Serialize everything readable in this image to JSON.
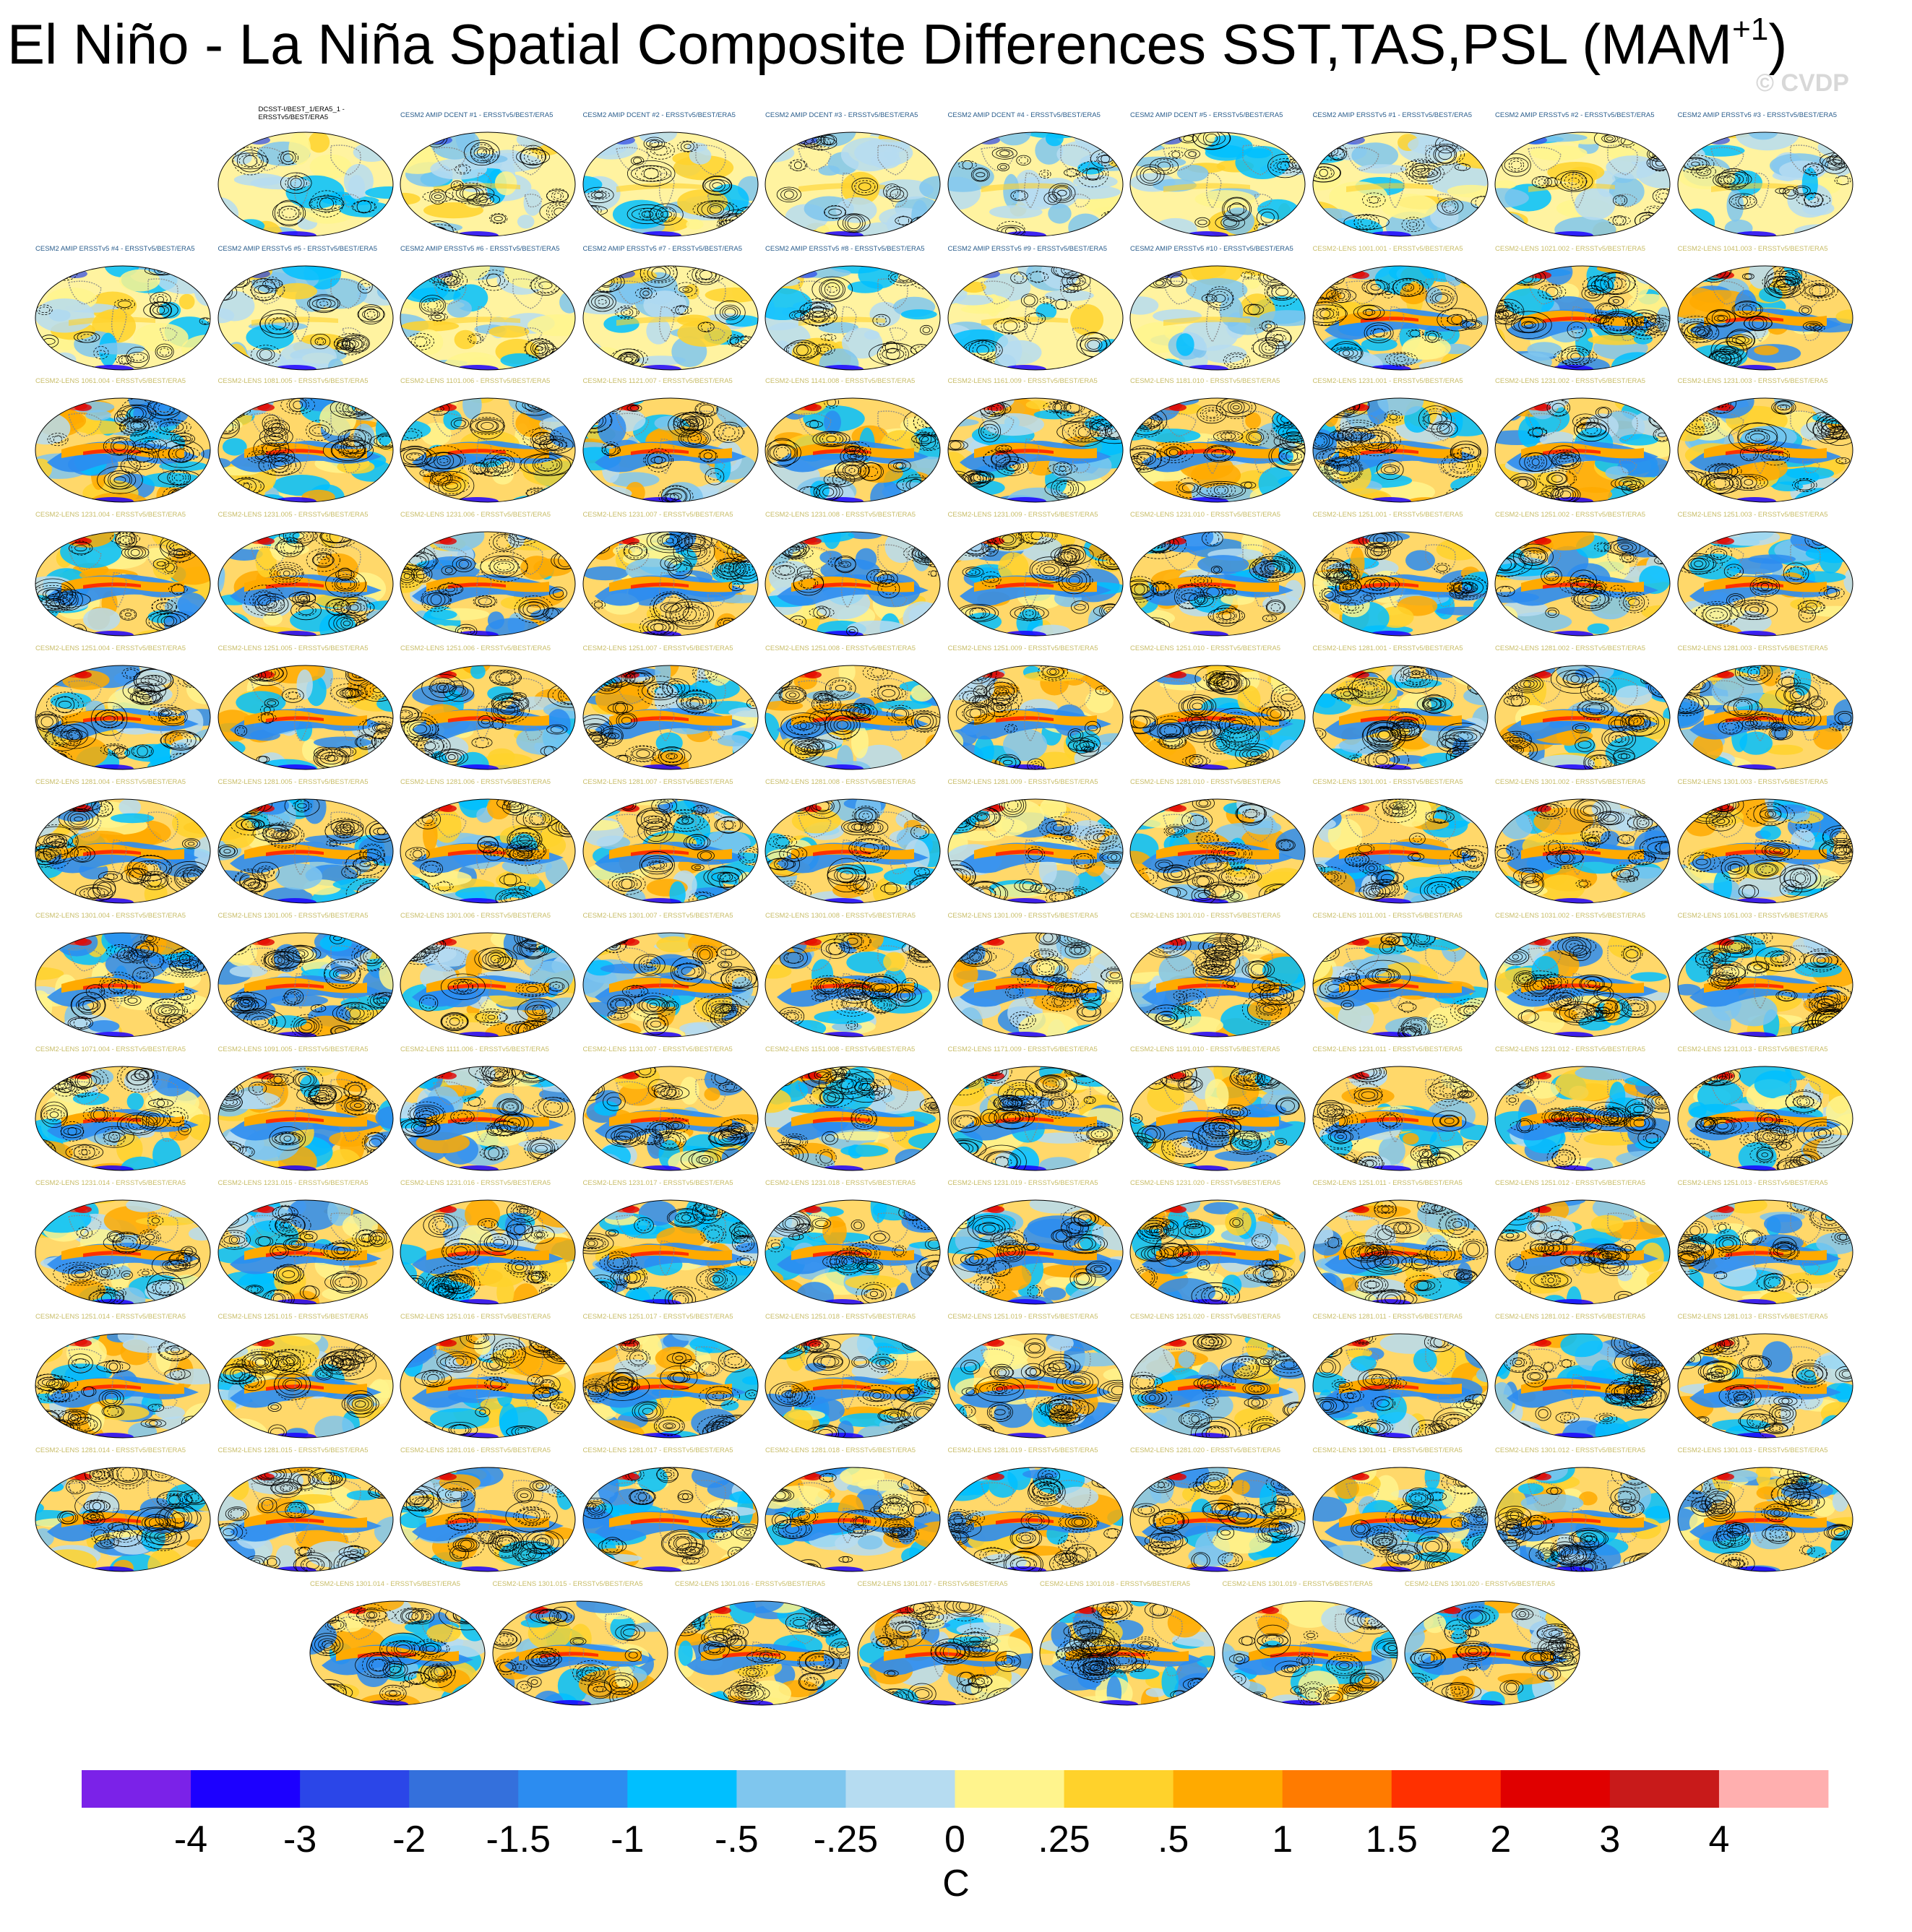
{
  "title_main": "El Niño - La Niña Spatial Composite Differences SST,TAS,PSL (MAM",
  "title_sup": "+1",
  "title_close": ")",
  "watermark": "© CVDP",
  "chart_data": {
    "type": "heatmap",
    "title": "El Niño - La Niña Spatial Composite Differences SST,TAS,PSL (MAM+1)",
    "units_label": "C",
    "colorbar": {
      "levels": [
        "-4",
        "-3",
        "-2",
        "-1.5",
        "-1",
        "-.5",
        "-.25",
        "0",
        ".25",
        ".5",
        "1",
        "1.5",
        "2",
        "3",
        "4"
      ],
      "colors": [
        "#7b22e8",
        "#1c00ff",
        "#2b46e8",
        "#3470dc",
        "#2c8cf0",
        "#00bfff",
        "#7fc6ee",
        "#b6dcf1",
        "#fff48d",
        "#ffd22b",
        "#ffaa00",
        "#ff7b00",
        "#ff3000",
        "#e00000",
        "#c81a1a",
        "#ffafaf"
      ]
    },
    "panels": [
      {
        "label": "DCSST-I/BEST_1/ERA5_1 - ERSSTv5/BEST/ERA5",
        "group": "obs"
      },
      {
        "label": "CESM2 AMIP DCENT #1 - ERSSTv5/BEST/ERA5",
        "group": "amip"
      },
      {
        "label": "CESM2 AMIP DCENT #2 - ERSSTv5/BEST/ERA5",
        "group": "amip"
      },
      {
        "label": "CESM2 AMIP DCENT #3 - ERSSTv5/BEST/ERA5",
        "group": "amip"
      },
      {
        "label": "CESM2 AMIP DCENT #4 - ERSSTv5/BEST/ERA5",
        "group": "amip"
      },
      {
        "label": "CESM2 AMIP DCENT #5 - ERSSTv5/BEST/ERA5",
        "group": "amip"
      },
      {
        "label": "CESM2 AMIP ERSSTv5 #1 - ERSSTv5/BEST/ERA5",
        "group": "amip"
      },
      {
        "label": "CESM2 AMIP ERSSTv5 #2 - ERSSTv5/BEST/ERA5",
        "group": "amip"
      },
      {
        "label": "CESM2 AMIP ERSSTv5 #3 - ERSSTv5/BEST/ERA5",
        "group": "amip"
      },
      {
        "label": "CESM2 AMIP ERSSTv5 #4 - ERSSTv5/BEST/ERA5",
        "group": "amip"
      },
      {
        "label": "CESM2 AMIP ERSSTv5 #5 - ERSSTv5/BEST/ERA5",
        "group": "amip"
      },
      {
        "label": "CESM2 AMIP ERSSTv5 #6 - ERSSTv5/BEST/ERA5",
        "group": "amip"
      },
      {
        "label": "CESM2 AMIP ERSSTv5 #7 - ERSSTv5/BEST/ERA5",
        "group": "amip"
      },
      {
        "label": "CESM2 AMIP ERSSTv5 #8 - ERSSTv5/BEST/ERA5",
        "group": "amip"
      },
      {
        "label": "CESM2 AMIP ERSSTv5 #9 - ERSSTv5/BEST/ERA5",
        "group": "amip"
      },
      {
        "label": "CESM2 AMIP ERSSTv5 #10 - ERSSTv5/BEST/ERA5",
        "group": "amip"
      },
      {
        "label": "CESM2-LENS 1001.001 - ERSSTv5/BEST/ERA5",
        "group": "lens"
      },
      {
        "label": "CESM2-LENS 1021.002 - ERSSTv5/BEST/ERA5",
        "group": "lens"
      },
      {
        "label": "CESM2-LENS 1041.003 - ERSSTv5/BEST/ERA5",
        "group": "lens"
      },
      {
        "label": "CESM2-LENS 1061.004 - ERSSTv5/BEST/ERA5",
        "group": "lens"
      },
      {
        "label": "CESM2-LENS 1081.005 - ERSSTv5/BEST/ERA5",
        "group": "lens"
      },
      {
        "label": "CESM2-LENS 1101.006 - ERSSTv5/BEST/ERA5",
        "group": "lens"
      },
      {
        "label": "CESM2-LENS 1121.007 - ERSSTv5/BEST/ERA5",
        "group": "lens"
      },
      {
        "label": "CESM2-LENS 1141.008 - ERSSTv5/BEST/ERA5",
        "group": "lens"
      },
      {
        "label": "CESM2-LENS 1161.009 - ERSSTv5/BEST/ERA5",
        "group": "lens"
      },
      {
        "label": "CESM2-LENS 1181.010 - ERSSTv5/BEST/ERA5",
        "group": "lens"
      },
      {
        "label": "CESM2-LENS 1231.001 - ERSSTv5/BEST/ERA5",
        "group": "lens"
      },
      {
        "label": "CESM2-LENS 1231.002 - ERSSTv5/BEST/ERA5",
        "group": "lens"
      },
      {
        "label": "CESM2-LENS 1231.003 - ERSSTv5/BEST/ERA5",
        "group": "lens"
      },
      {
        "label": "CESM2-LENS 1231.004 - ERSSTv5/BEST/ERA5",
        "group": "lens"
      },
      {
        "label": "CESM2-LENS 1231.005 - ERSSTv5/BEST/ERA5",
        "group": "lens"
      },
      {
        "label": "CESM2-LENS 1231.006 - ERSSTv5/BEST/ERA5",
        "group": "lens"
      },
      {
        "label": "CESM2-LENS 1231.007 - ERSSTv5/BEST/ERA5",
        "group": "lens"
      },
      {
        "label": "CESM2-LENS 1231.008 - ERSSTv5/BEST/ERA5",
        "group": "lens"
      },
      {
        "label": "CESM2-LENS 1231.009 - ERSSTv5/BEST/ERA5",
        "group": "lens"
      },
      {
        "label": "CESM2-LENS 1231.010 - ERSSTv5/BEST/ERA5",
        "group": "lens"
      },
      {
        "label": "CESM2-LENS 1251.001 - ERSSTv5/BEST/ERA5",
        "group": "lens"
      },
      {
        "label": "CESM2-LENS 1251.002 - ERSSTv5/BEST/ERA5",
        "group": "lens"
      },
      {
        "label": "CESM2-LENS 1251.003 - ERSSTv5/BEST/ERA5",
        "group": "lens"
      },
      {
        "label": "CESM2-LENS 1251.004 - ERSSTv5/BEST/ERA5",
        "group": "lens"
      },
      {
        "label": "CESM2-LENS 1251.005 - ERSSTv5/BEST/ERA5",
        "group": "lens"
      },
      {
        "label": "CESM2-LENS 1251.006 - ERSSTv5/BEST/ERA5",
        "group": "lens"
      },
      {
        "label": "CESM2-LENS 1251.007 - ERSSTv5/BEST/ERA5",
        "group": "lens"
      },
      {
        "label": "CESM2-LENS 1251.008 - ERSSTv5/BEST/ERA5",
        "group": "lens"
      },
      {
        "label": "CESM2-LENS 1251.009 - ERSSTv5/BEST/ERA5",
        "group": "lens"
      },
      {
        "label": "CESM2-LENS 1251.010 - ERSSTv5/BEST/ERA5",
        "group": "lens"
      },
      {
        "label": "CESM2-LENS 1281.001 - ERSSTv5/BEST/ERA5",
        "group": "lens"
      },
      {
        "label": "CESM2-LENS 1281.002 - ERSSTv5/BEST/ERA5",
        "group": "lens"
      },
      {
        "label": "CESM2-LENS 1281.003 - ERSSTv5/BEST/ERA5",
        "group": "lens"
      },
      {
        "label": "CESM2-LENS 1281.004 - ERSSTv5/BEST/ERA5",
        "group": "lens"
      },
      {
        "label": "CESM2-LENS 1281.005 - ERSSTv5/BEST/ERA5",
        "group": "lens"
      },
      {
        "label": "CESM2-LENS 1281.006 - ERSSTv5/BEST/ERA5",
        "group": "lens"
      },
      {
        "label": "CESM2-LENS 1281.007 - ERSSTv5/BEST/ERA5",
        "group": "lens"
      },
      {
        "label": "CESM2-LENS 1281.008 - ERSSTv5/BEST/ERA5",
        "group": "lens"
      },
      {
        "label": "CESM2-LENS 1281.009 - ERSSTv5/BEST/ERA5",
        "group": "lens"
      },
      {
        "label": "CESM2-LENS 1281.010 - ERSSTv5/BEST/ERA5",
        "group": "lens"
      },
      {
        "label": "CESM2-LENS 1301.001 - ERSSTv5/BEST/ERA5",
        "group": "lens"
      },
      {
        "label": "CESM2-LENS 1301.002 - ERSSTv5/BEST/ERA5",
        "group": "lens"
      },
      {
        "label": "CESM2-LENS 1301.003 - ERSSTv5/BEST/ERA5",
        "group": "lens"
      },
      {
        "label": "CESM2-LENS 1301.004 - ERSSTv5/BEST/ERA5",
        "group": "lens"
      },
      {
        "label": "CESM2-LENS 1301.005 - ERSSTv5/BEST/ERA5",
        "group": "lens"
      },
      {
        "label": "CESM2-LENS 1301.006 - ERSSTv5/BEST/ERA5",
        "group": "lens"
      },
      {
        "label": "CESM2-LENS 1301.007 - ERSSTv5/BEST/ERA5",
        "group": "lens"
      },
      {
        "label": "CESM2-LENS 1301.008 - ERSSTv5/BEST/ERA5",
        "group": "lens"
      },
      {
        "label": "CESM2-LENS 1301.009 - ERSSTv5/BEST/ERA5",
        "group": "lens"
      },
      {
        "label": "CESM2-LENS 1301.010 - ERSSTv5/BEST/ERA5",
        "group": "lens"
      },
      {
        "label": "CESM2-LENS 1011.001 - ERSSTv5/BEST/ERA5",
        "group": "lens"
      },
      {
        "label": "CESM2-LENS 1031.002 - ERSSTv5/BEST/ERA5",
        "group": "lens"
      },
      {
        "label": "CESM2-LENS 1051.003 - ERSSTv5/BEST/ERA5",
        "group": "lens"
      },
      {
        "label": "CESM2-LENS 1071.004 - ERSSTv5/BEST/ERA5",
        "group": "lens"
      },
      {
        "label": "CESM2-LENS 1091.005 - ERSSTv5/BEST/ERA5",
        "group": "lens"
      },
      {
        "label": "CESM2-LENS 1111.006 - ERSSTv5/BEST/ERA5",
        "group": "lens"
      },
      {
        "label": "CESM2-LENS 1131.007 - ERSSTv5/BEST/ERA5",
        "group": "lens"
      },
      {
        "label": "CESM2-LENS 1151.008 - ERSSTv5/BEST/ERA5",
        "group": "lens"
      },
      {
        "label": "CESM2-LENS 1171.009 - ERSSTv5/BEST/ERA5",
        "group": "lens"
      },
      {
        "label": "CESM2-LENS 1191.010 - ERSSTv5/BEST/ERA5",
        "group": "lens"
      },
      {
        "label": "CESM2-LENS 1231.011 - ERSSTv5/BEST/ERA5",
        "group": "lens"
      },
      {
        "label": "CESM2-LENS 1231.012 - ERSSTv5/BEST/ERA5",
        "group": "lens"
      },
      {
        "label": "CESM2-LENS 1231.013 - ERSSTv5/BEST/ERA5",
        "group": "lens"
      },
      {
        "label": "CESM2-LENS 1231.014 - ERSSTv5/BEST/ERA5",
        "group": "lens"
      },
      {
        "label": "CESM2-LENS 1231.015 - ERSSTv5/BEST/ERA5",
        "group": "lens"
      },
      {
        "label": "CESM2-LENS 1231.016 - ERSSTv5/BEST/ERA5",
        "group": "lens"
      },
      {
        "label": "CESM2-LENS 1231.017 - ERSSTv5/BEST/ERA5",
        "group": "lens"
      },
      {
        "label": "CESM2-LENS 1231.018 - ERSSTv5/BEST/ERA5",
        "group": "lens"
      },
      {
        "label": "CESM2-LENS 1231.019 - ERSSTv5/BEST/ERA5",
        "group": "lens"
      },
      {
        "label": "CESM2-LENS 1231.020 - ERSSTv5/BEST/ERA5",
        "group": "lens"
      },
      {
        "label": "CESM2-LENS 1251.011 - ERSSTv5/BEST/ERA5",
        "group": "lens"
      },
      {
        "label": "CESM2-LENS 1251.012 - ERSSTv5/BEST/ERA5",
        "group": "lens"
      },
      {
        "label": "CESM2-LENS 1251.013 - ERSSTv5/BEST/ERA5",
        "group": "lens"
      },
      {
        "label": "CESM2-LENS 1251.014 - ERSSTv5/BEST/ERA5",
        "group": "lens"
      },
      {
        "label": "CESM2-LENS 1251.015 - ERSSTv5/BEST/ERA5",
        "group": "lens"
      },
      {
        "label": "CESM2-LENS 1251.016 - ERSSTv5/BEST/ERA5",
        "group": "lens"
      },
      {
        "label": "CESM2-LENS 1251.017 - ERSSTv5/BEST/ERA5",
        "group": "lens"
      },
      {
        "label": "CESM2-LENS 1251.018 - ERSSTv5/BEST/ERA5",
        "group": "lens"
      },
      {
        "label": "CESM2-LENS 1251.019 - ERSSTv5/BEST/ERA5",
        "group": "lens"
      },
      {
        "label": "CESM2-LENS 1251.020 - ERSSTv5/BEST/ERA5",
        "group": "lens"
      },
      {
        "label": "CESM2-LENS 1281.011 - ERSSTv5/BEST/ERA5",
        "group": "lens"
      },
      {
        "label": "CESM2-LENS 1281.012 - ERSSTv5/BEST/ERA5",
        "group": "lens"
      },
      {
        "label": "CESM2-LENS 1281.013 - ERSSTv5/BEST/ERA5",
        "group": "lens"
      },
      {
        "label": "CESM2-LENS 1281.014 - ERSSTv5/BEST/ERA5",
        "group": "lens"
      },
      {
        "label": "CESM2-LENS 1281.015 - ERSSTv5/BEST/ERA5",
        "group": "lens"
      },
      {
        "label": "CESM2-LENS 1281.016 - ERSSTv5/BEST/ERA5",
        "group": "lens"
      },
      {
        "label": "CESM2-LENS 1281.017 - ERSSTv5/BEST/ERA5",
        "group": "lens"
      },
      {
        "label": "CESM2-LENS 1281.018 - ERSSTv5/BEST/ERA5",
        "group": "lens"
      },
      {
        "label": "CESM2-LENS 1281.019 - ERSSTv5/BEST/ERA5",
        "group": "lens"
      },
      {
        "label": "CESM2-LENS 1281.020 - ERSSTv5/BEST/ERA5",
        "group": "lens"
      },
      {
        "label": "CESM2-LENS 1301.011 - ERSSTv5/BEST/ERA5",
        "group": "lens"
      },
      {
        "label": "CESM2-LENS 1301.012 - ERSSTv5/BEST/ERA5",
        "group": "lens"
      },
      {
        "label": "CESM2-LENS 1301.013 - ERSSTv5/BEST/ERA5",
        "group": "lens"
      },
      {
        "label": "CESM2-LENS 1301.014 - ERSSTv5/BEST/ERA5",
        "group": "lens"
      },
      {
        "label": "CESM2-LENS 1301.015 - ERSSTv5/BEST/ERA5",
        "group": "lens"
      },
      {
        "label": "CESM2-LENS 1301.016 - ERSSTv5/BEST/ERA5",
        "group": "lens"
      },
      {
        "label": "CESM2-LENS 1301.017 - ERSSTv5/BEST/ERA5",
        "group": "lens"
      },
      {
        "label": "CESM2-LENS 1301.018 - ERSSTv5/BEST/ERA5",
        "group": "lens"
      },
      {
        "label": "CESM2-LENS 1301.019 - ERSSTv5/BEST/ERA5",
        "group": "lens"
      },
      {
        "label": "CESM2-LENS 1301.020 - ERSSTv5/BEST/ERA5",
        "group": "lens"
      }
    ]
  }
}
